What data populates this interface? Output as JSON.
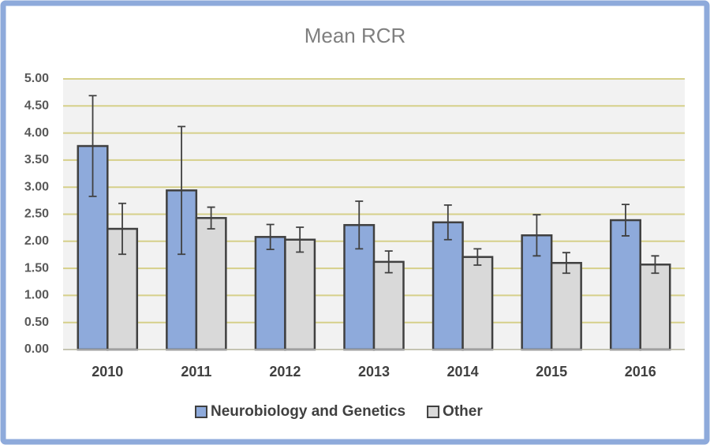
{
  "chart_data": {
    "type": "bar",
    "title": "Mean RCR",
    "categories": [
      "2010",
      "2011",
      "2012",
      "2013",
      "2014",
      "2015",
      "2016"
    ],
    "series": [
      {
        "name": "Neurobiology and Genetics",
        "color": "#8eaadb",
        "values": [
          3.76,
          2.94,
          2.08,
          2.3,
          2.35,
          2.11,
          2.39
        ],
        "errors": [
          0.93,
          1.18,
          0.23,
          0.44,
          0.32,
          0.38,
          0.29
        ]
      },
      {
        "name": "Other",
        "color": "#d9d9d9",
        "values": [
          2.23,
          2.43,
          2.03,
          1.62,
          1.71,
          1.6,
          1.57
        ],
        "errors": [
          0.47,
          0.2,
          0.23,
          0.2,
          0.15,
          0.19,
          0.16
        ]
      }
    ],
    "ylim": [
      0,
      5
    ],
    "yticks": [
      {
        "value": 0,
        "label": "0.00"
      },
      {
        "value": 0.5,
        "label": "0.50"
      },
      {
        "value": 1,
        "label": "1.00"
      },
      {
        "value": 1.5,
        "label": "1.50"
      },
      {
        "value": 2,
        "label": "2.00"
      },
      {
        "value": 2.5,
        "label": "2.50"
      },
      {
        "value": 3,
        "label": "3.00"
      },
      {
        "value": 3.5,
        "label": "3.50"
      },
      {
        "value": 4,
        "label": "4.00"
      },
      {
        "value": 4.5,
        "label": "4.50"
      },
      {
        "value": 5,
        "label": "5.00"
      }
    ],
    "grid": true,
    "legend": "bottom"
  }
}
